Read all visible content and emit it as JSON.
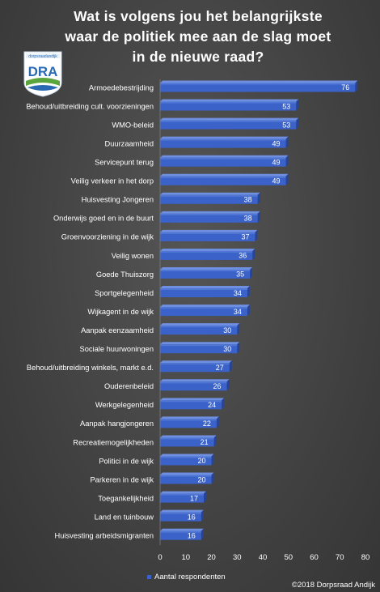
{
  "chart_data": {
    "type": "bar",
    "orientation": "horizontal",
    "title": "Wat is volgens jou het belangrijkste\nwaar de politiek mee aan de slag moet\nin de nieuwe raad?",
    "categories": [
      "Armoedebestrijding",
      "Behoud/uitbreiding cult. voorzieningen",
      "WMO-beleid",
      "Duurzaamheid",
      "Servicepunt terug",
      "Veilig verkeer in het dorp",
      "Huisvesting Jongeren",
      "Onderwijs goed en in de buurt",
      "Groenvoorziening in de wijk",
      "Veilig wonen",
      "Goede Thuiszorg",
      "Sportgelegenheid",
      "Wijkagent in de wijk",
      "Aanpak eenzaamheid",
      "Sociale huurwoningen",
      "Behoud/uitbreiding winkels, markt e.d.",
      "Ouderenbeleid",
      "Werkgelegenheid",
      "Aanpak hangjongeren",
      "Recreatiemogelijkheden",
      "Politici in de wijk",
      "Parkeren in de wijk",
      "Toegankelijkheid",
      "Land en tuinbouw",
      "Huisvesting arbeidsmigranten"
    ],
    "series": [
      {
        "name": "Aantal respondenten",
        "values": [
          76,
          53,
          53,
          49,
          49,
          49,
          38,
          38,
          37,
          36,
          35,
          34,
          34,
          30,
          30,
          27,
          26,
          24,
          22,
          21,
          20,
          20,
          17,
          16,
          16
        ]
      }
    ],
    "xlim": [
      0,
      80
    ],
    "x_ticks": [
      0,
      10,
      20,
      30,
      40,
      50,
      60,
      70,
      80
    ],
    "grid": false,
    "legend": "bottom",
    "bar_color": "#3b62c8"
  },
  "logo": {
    "top_text": "dorpsraadandijk",
    "letters": "DRA"
  },
  "footer": {
    "copyright": "©2018 Dorpsraad Andijk"
  }
}
